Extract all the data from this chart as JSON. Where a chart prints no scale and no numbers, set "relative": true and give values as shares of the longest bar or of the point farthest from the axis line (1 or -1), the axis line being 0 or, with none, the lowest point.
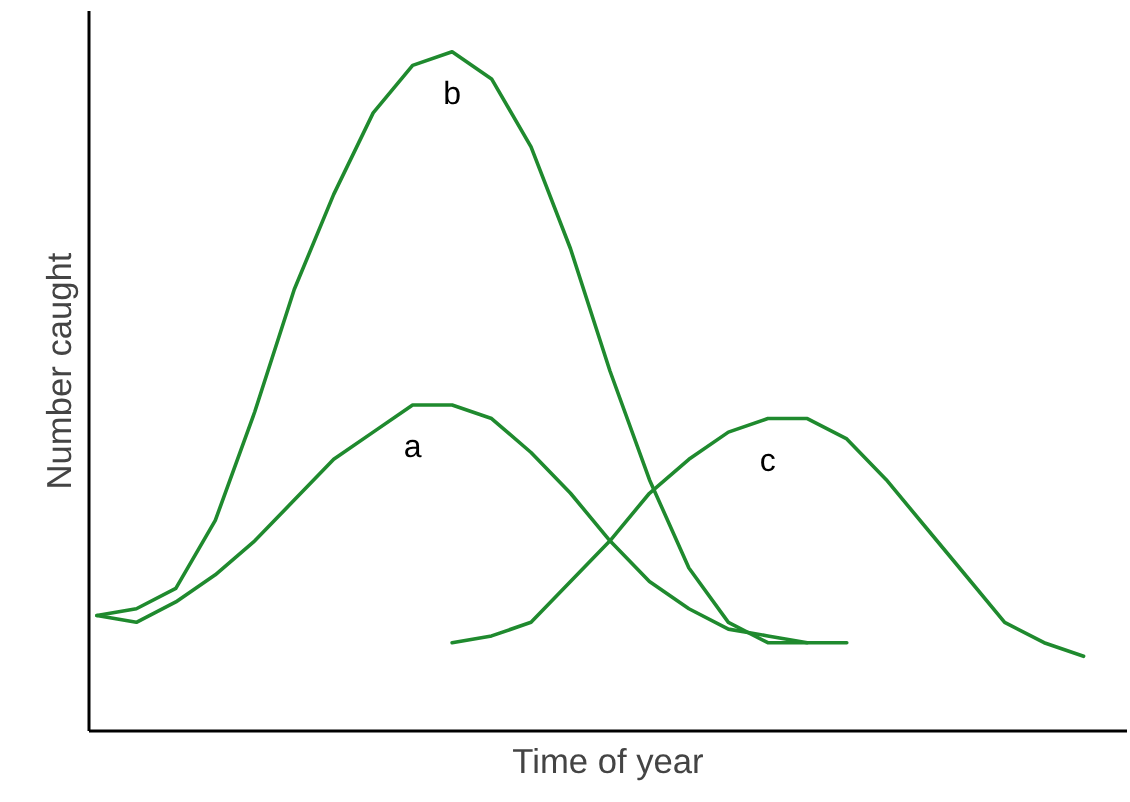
{
  "chart_data": {
    "type": "line",
    "relative": true,
    "xlabel": "Time of year",
    "ylabel": "Number caught",
    "categories": [
      null,
      null,
      null,
      null,
      null,
      null,
      null,
      null,
      null,
      null,
      null,
      null,
      null,
      null,
      null,
      null,
      null,
      null,
      null,
      null,
      null,
      null,
      null,
      null,
      null,
      null,
      null
    ],
    "series": [
      {
        "name": "a",
        "color": "#1f8a2e",
        "values": [
          0.17,
          0.16,
          0.19,
          0.23,
          0.28,
          0.34,
          0.4,
          0.44,
          0.48,
          0.48,
          0.46,
          0.41,
          0.35,
          0.28,
          0.22,
          0.18,
          0.15,
          0.14,
          0.13,
          0.13,
          null,
          null,
          null,
          null,
          null,
          null,
          null
        ]
      },
      {
        "name": "b",
        "color": "#1f8a2e",
        "values": [
          0.17,
          0.18,
          0.21,
          0.31,
          0.47,
          0.65,
          0.79,
          0.91,
          0.98,
          1.0,
          0.96,
          0.86,
          0.71,
          0.53,
          0.37,
          0.24,
          0.16,
          0.13,
          0.13,
          null,
          null,
          null,
          null,
          null,
          null,
          null,
          null
        ]
      },
      {
        "name": "c",
        "color": "#1f8a2e",
        "values": [
          null,
          null,
          null,
          null,
          null,
          null,
          null,
          null,
          null,
          0.13,
          0.14,
          0.16,
          0.22,
          0.28,
          0.35,
          0.4,
          0.44,
          0.46,
          0.46,
          0.43,
          0.37,
          0.3,
          0.23,
          0.16,
          0.13,
          0.11,
          null
        ]
      }
    ]
  }
}
